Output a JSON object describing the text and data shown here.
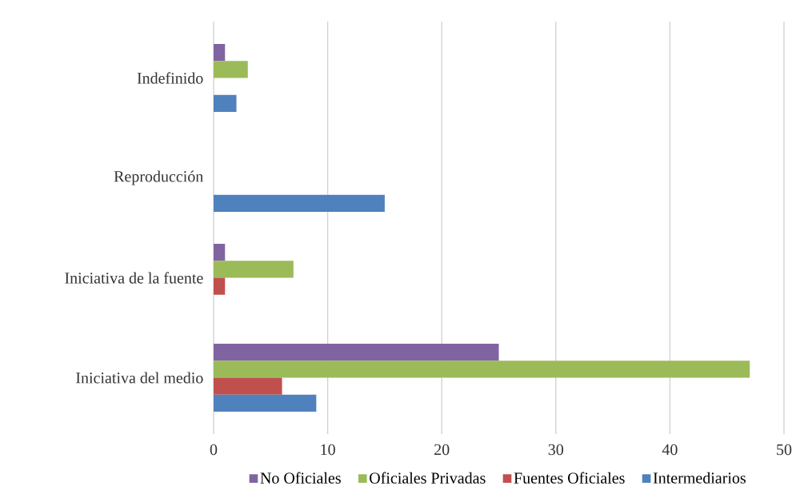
{
  "chart_data": {
    "type": "bar",
    "orientation": "horizontal",
    "categories": [
      "Indefinido",
      "Reproducción",
      "Iniciativa de la fuente",
      "Iniciativa del medio"
    ],
    "series": [
      {
        "name": "No Oficiales",
        "color": "#8064a2",
        "values": [
          1,
          0,
          1,
          25
        ]
      },
      {
        "name": "Oficiales Privadas",
        "color": "#9bbb59",
        "values": [
          3,
          0,
          7,
          47
        ]
      },
      {
        "name": "Fuentes Oficiales",
        "color": "#c0504d",
        "values": [
          0,
          0,
          1,
          6
        ]
      },
      {
        "name": "Intermediarios",
        "color": "#4f81bd",
        "values": [
          2,
          15,
          0,
          9
        ]
      }
    ],
    "xlim": [
      0,
      50
    ],
    "xticks": [
      0,
      10,
      20,
      30,
      40,
      50
    ],
    "grid": "x",
    "legend": "bottom"
  }
}
